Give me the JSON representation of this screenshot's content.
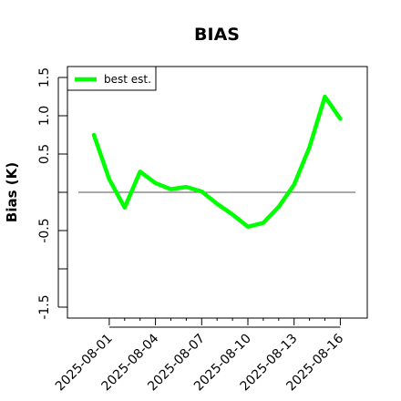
{
  "chart_data": {
    "type": "line",
    "title": "BIAS",
    "xlabel": "",
    "ylabel": "Bias (K)",
    "ylim": [
      -1.6,
      1.6
    ],
    "x": [
      "2025-07-31",
      "2025-08-01",
      "2025-08-02",
      "2025-08-03",
      "2025-08-04",
      "2025-08-05",
      "2025-08-06",
      "2025-08-07",
      "2025-08-08",
      "2025-08-09",
      "2025-08-10",
      "2025-08-11",
      "2025-08-12",
      "2025-08-13",
      "2025-08-14",
      "2025-08-15",
      "2025-08-16"
    ],
    "x_tick_labels": [
      "2025-08-01",
      "2025-08-04",
      "2025-08-07",
      "2025-08-10",
      "2025-08-13",
      "2025-08-16"
    ],
    "y_tick_labels": [
      "-1.5",
      "-0.5",
      "0.5",
      "1.0",
      "1.5"
    ],
    "reference_line": 0,
    "series": [
      {
        "name": "best est.",
        "color": "#00ff00",
        "values": [
          0.75,
          0.17,
          -0.2,
          0.27,
          0.12,
          0.04,
          0.07,
          0.01,
          -0.15,
          -0.29,
          -0.45,
          -0.4,
          -0.19,
          0.1,
          0.59,
          1.25,
          0.96
        ]
      }
    ],
    "legend": "top-left",
    "grid": false
  }
}
